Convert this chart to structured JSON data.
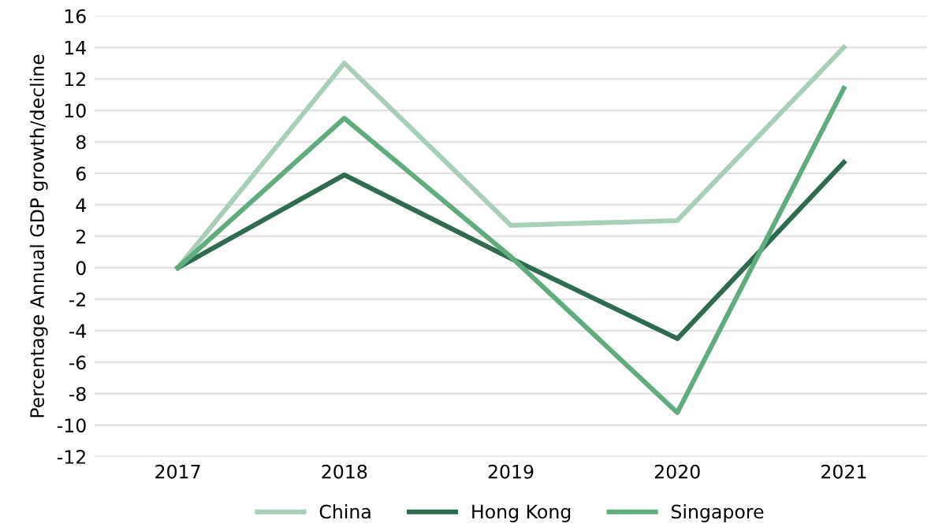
{
  "chart_data": {
    "type": "line",
    "ylabel": "Percentage Annual GDP growth/decline",
    "categories": [
      "2017",
      "2018",
      "2019",
      "2020",
      "2021"
    ],
    "series": [
      {
        "name": "China",
        "color": "#a9cfb8",
        "values": [
          0,
          13,
          2.7,
          3,
          14
        ]
      },
      {
        "name": "Hong Kong",
        "color": "#2e6b4f",
        "values": [
          0,
          5.9,
          0.6,
          -4.5,
          6.7
        ]
      },
      {
        "name": "Singapore",
        "color": "#5fac7e",
        "values": [
          0,
          9.5,
          0.7,
          -9.2,
          11.4
        ]
      }
    ],
    "ylim": [
      -12,
      16
    ],
    "yticks": [
      -12,
      -10,
      -8,
      -6,
      -4,
      -2,
      0,
      2,
      4,
      6,
      8,
      10,
      12,
      14,
      16
    ],
    "grid": "y",
    "legend": "bottom",
    "marker": "none",
    "line_style": "solid"
  }
}
